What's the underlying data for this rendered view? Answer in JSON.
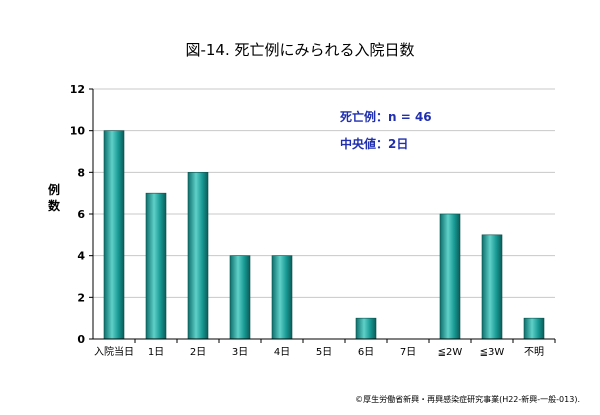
{
  "chart_data": {
    "type": "bar",
    "title": "図-14. 死亡例にみられる入院日数",
    "ylabel": "例数",
    "xlabel": "",
    "categories": [
      "入院当日",
      "1日",
      "2日",
      "3日",
      "4日",
      "5日",
      "6日",
      "7日",
      "≦2W",
      "≦3W",
      "不明"
    ],
    "values": [
      10,
      7,
      8,
      4,
      4,
      0,
      1,
      0,
      6,
      5,
      1
    ],
    "ylim": [
      0,
      12
    ],
    "yticks": [
      0,
      2,
      4,
      6,
      8,
      10,
      12
    ],
    "grid": true,
    "bar_color": "#1a9c96",
    "annotations": [
      "死亡例：n = 46",
      "中央値：2日"
    ],
    "credit": "©厚生労働省新興・再興感染症研究事業(H22-新興-一般-013)."
  }
}
